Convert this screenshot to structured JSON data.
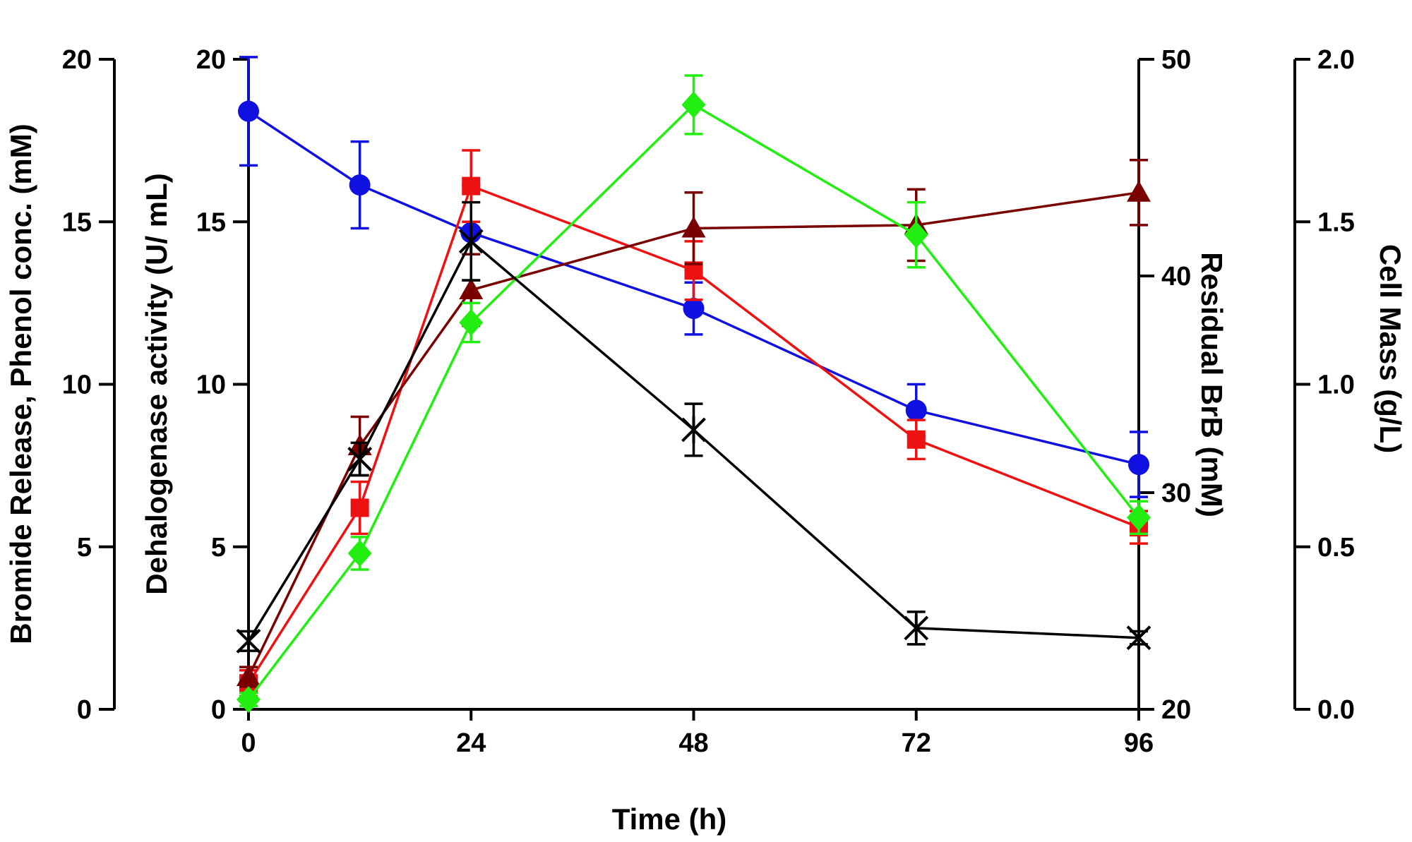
{
  "chart_data": {
    "type": "line",
    "title": "",
    "xlabel": "Time (h)",
    "x_ticks": [
      0,
      24,
      48,
      72,
      96
    ],
    "xlim": [
      0,
      96
    ],
    "axes": [
      {
        "id": "bromide",
        "label": "Bromide Release, Phenol conc. (mM)",
        "range": [
          0,
          20
        ],
        "ticks": [
          0,
          5,
          10,
          15,
          20
        ],
        "tick_labels": [
          "0",
          "5",
          "10",
          "15",
          "20"
        ]
      },
      {
        "id": "activity",
        "label": "Dehalogenase activity (U/ mL)",
        "range": [
          0,
          20
        ],
        "ticks": [
          0,
          5,
          10,
          15,
          20
        ],
        "tick_labels": [
          "0",
          "5",
          "10",
          "15",
          "20"
        ]
      },
      {
        "id": "brb",
        "label": "Residual BrB (mM)",
        "range": [
          20,
          50
        ],
        "ticks": [
          20,
          30,
          40,
          50
        ],
        "tick_labels": [
          "20",
          "30",
          "40",
          "50"
        ]
      },
      {
        "id": "cellmass",
        "label": "Cell Mass (g/L)",
        "range": [
          0,
          2
        ],
        "ticks": [
          0,
          0.5,
          1,
          1.5,
          2
        ],
        "tick_labels": [
          "0.0",
          "0.5",
          "1.0",
          "1.5",
          "2.0"
        ]
      }
    ],
    "series": [
      {
        "name": "Residual BrB",
        "axis": "brb",
        "color": "#1010e0",
        "marker": "circle",
        "x": [
          0,
          12,
          24,
          48,
          72,
          96
        ],
        "y": [
          47.6,
          44.2,
          42.0,
          38.5,
          33.8,
          31.3
        ],
        "err": [
          2.5,
          2.0,
          2.2,
          1.2,
          1.2,
          1.5
        ]
      },
      {
        "name": "Dehalogenase activity",
        "axis": "activity",
        "color": "#ee1111",
        "marker": "square",
        "x": [
          0,
          12,
          24,
          48,
          72,
          96
        ],
        "y": [
          0.8,
          6.2,
          16.1,
          13.5,
          8.3,
          5.6
        ],
        "err": [
          0.4,
          0.8,
          1.1,
          0.9,
          0.6,
          0.5
        ]
      },
      {
        "name": "Bromide release",
        "axis": "bromide",
        "color": "#7a0000",
        "marker": "triangle",
        "x": [
          0,
          12,
          24,
          48,
          72,
          96
        ],
        "y": [
          1.0,
          8.1,
          12.9,
          14.8,
          14.9,
          15.9
        ],
        "err": [
          0.3,
          0.9,
          1.1,
          1.1,
          1.1,
          1.0
        ]
      },
      {
        "name": "Phenol conc.",
        "axis": "bromide",
        "color": "#22ee11",
        "marker": "diamond",
        "x": [
          0,
          12,
          24,
          48,
          72,
          96
        ],
        "y": [
          0.3,
          4.8,
          11.9,
          18.6,
          14.6,
          5.9
        ],
        "err": [
          0.2,
          0.5,
          0.6,
          0.9,
          1.0,
          0.5
        ]
      },
      {
        "name": "Cell Mass",
        "axis": "cellmass",
        "color": "#000000",
        "marker": "asterisk",
        "x": [
          0,
          12,
          24,
          48,
          72,
          96
        ],
        "y": [
          0.21,
          0.77,
          1.44,
          0.86,
          0.25,
          0.22
        ],
        "err": [
          0.03,
          0.05,
          0.12,
          0.08,
          0.05,
          0.02
        ]
      }
    ]
  }
}
